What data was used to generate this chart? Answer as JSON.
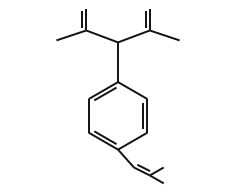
{
  "bg_color": "#ffffff",
  "line_color": "#111111",
  "line_width": 1.4,
  "fig_width": 2.5,
  "fig_height": 1.94,
  "dpi": 100
}
